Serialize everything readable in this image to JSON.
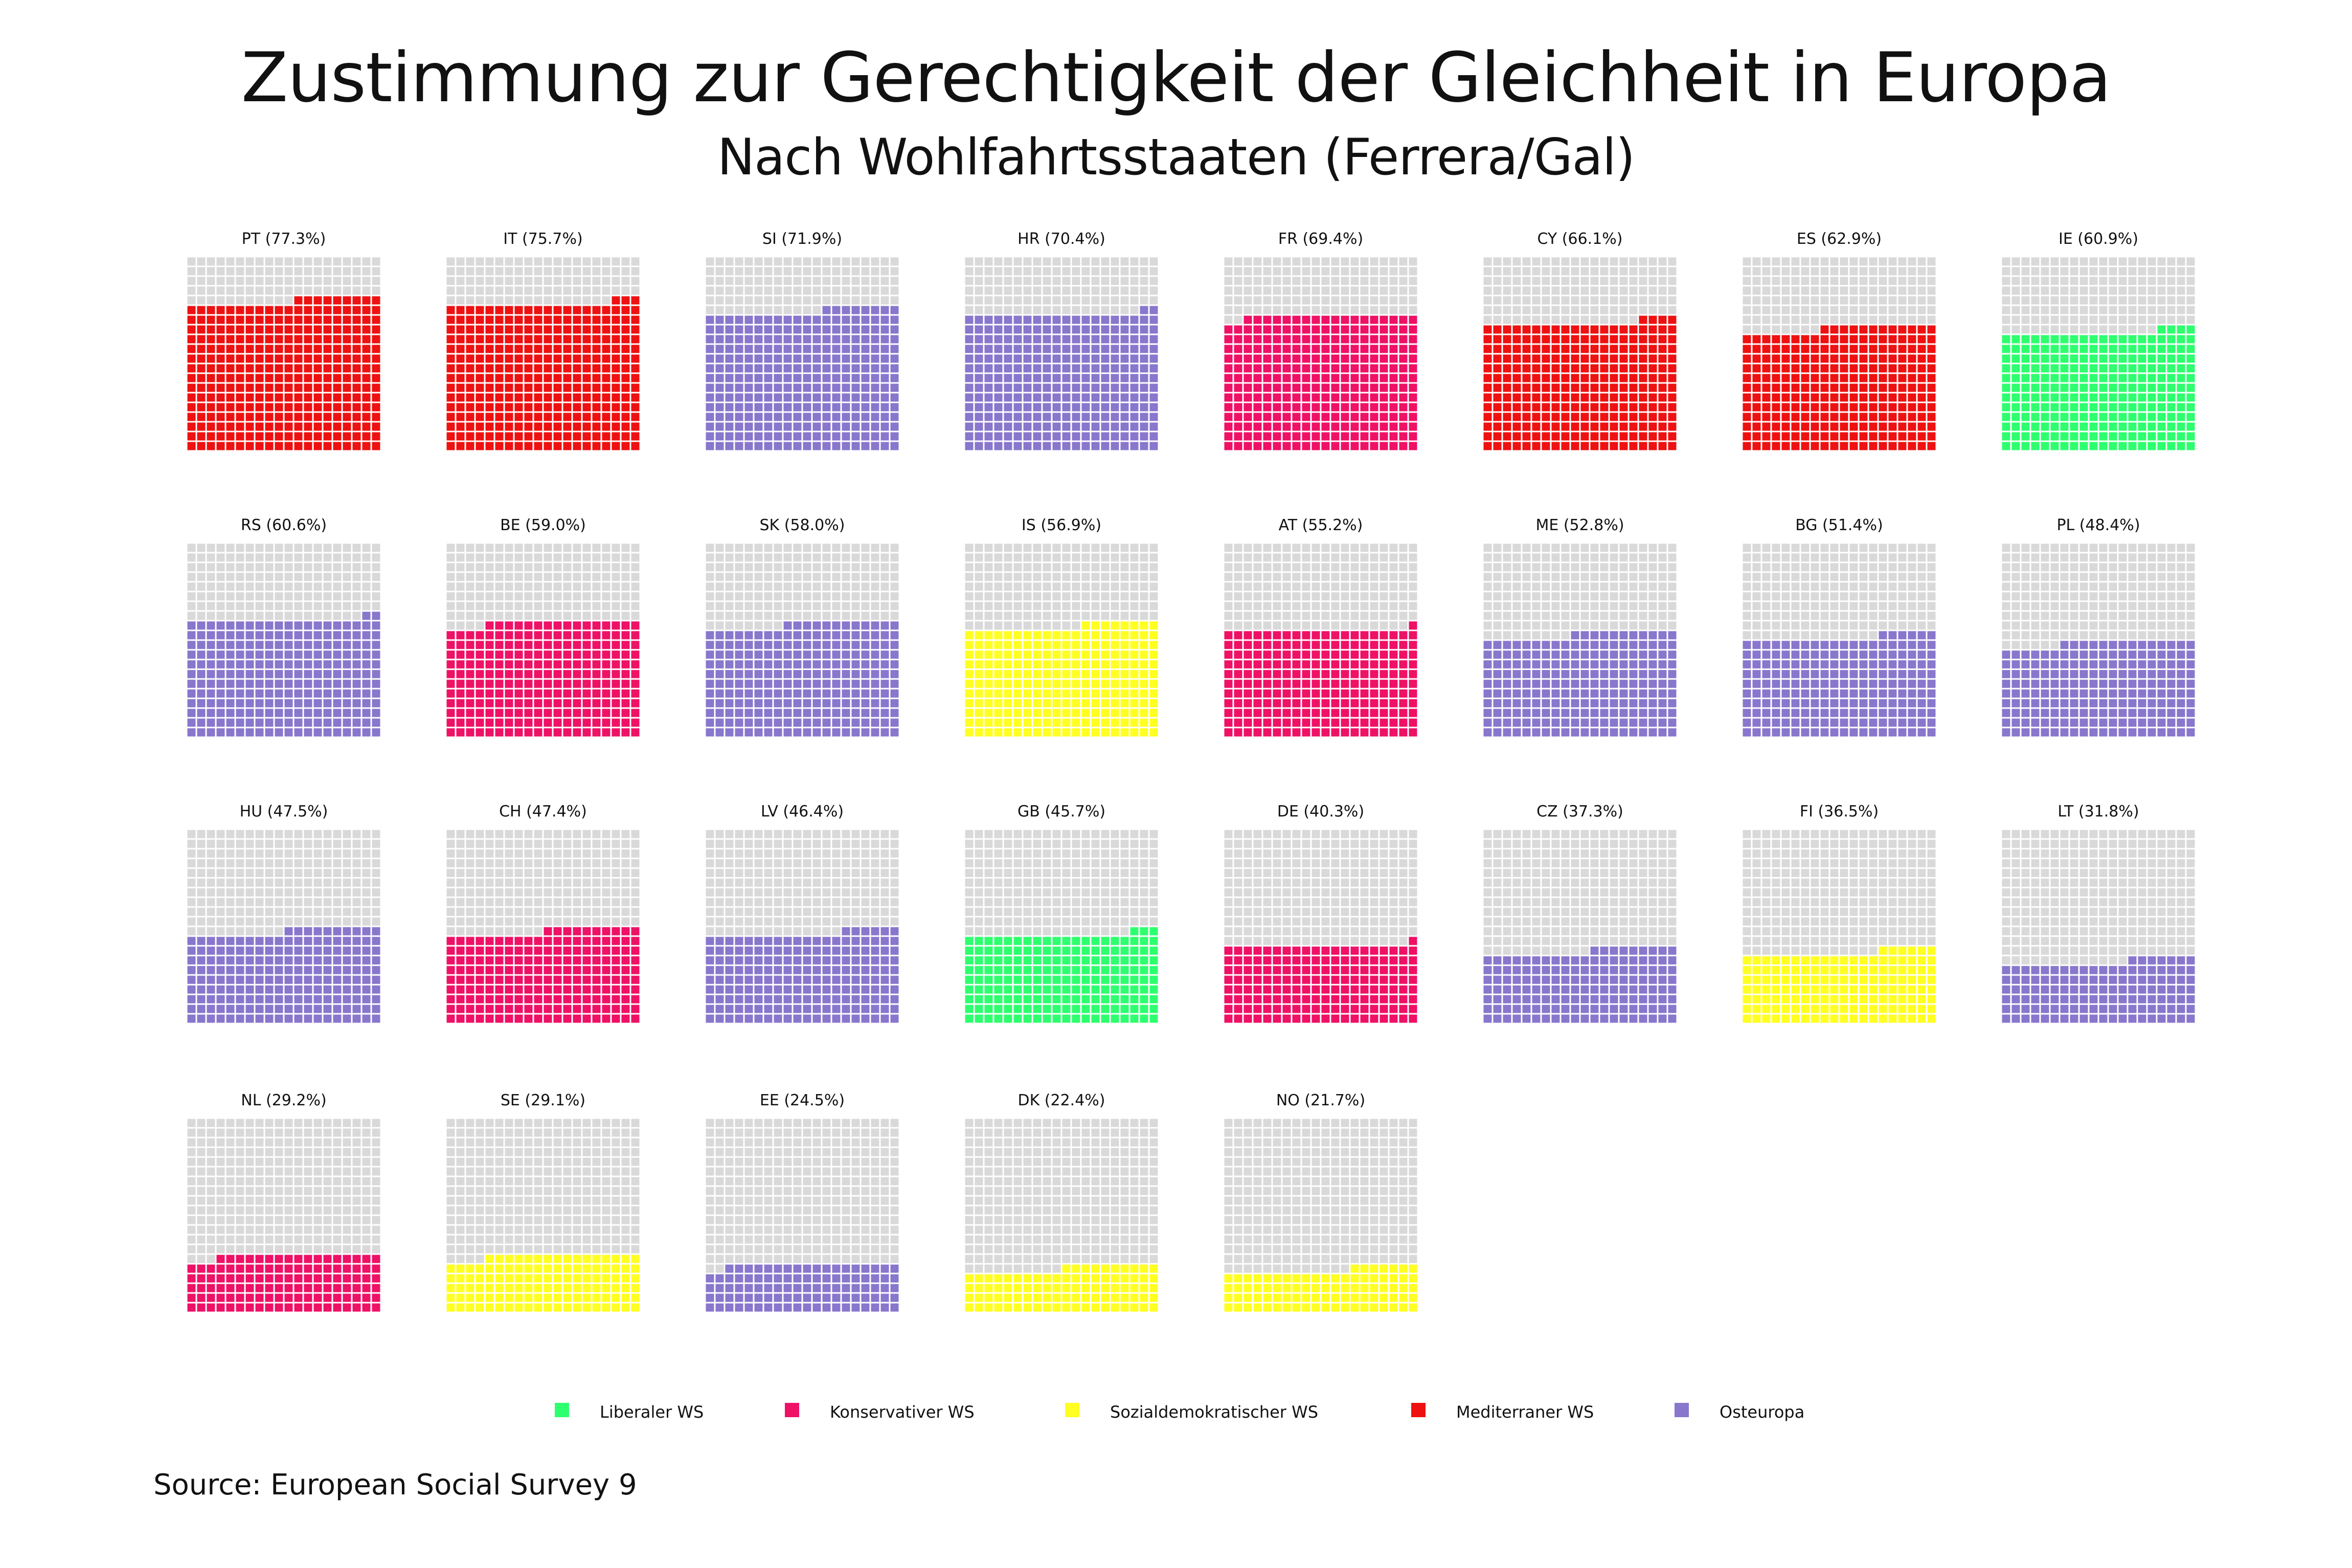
{
  "chart_data": {
    "type": "waffle",
    "title": "Zustimmung zur Gerechtigkeit der Gleichheit in Europa",
    "subtitle": "Nach Wohlfahrtsstaaten (Ferrera/Gal)",
    "source": "Source: European Social Survey 9",
    "cells_per_panel": 400,
    "grid": {
      "rows": 20,
      "cols": 20
    },
    "empty_color": "#d9d9d9",
    "legend": [
      {
        "name": "Liberaler WS",
        "color": "#2dff6e"
      },
      {
        "name": "Konservativer WS",
        "color": "#ee1166"
      },
      {
        "name": "Sozialdemokratischer WS",
        "color": "#ffff22"
      },
      {
        "name": "Mediterraner WS",
        "color": "#ee1111"
      },
      {
        "name": "Osteuropa",
        "color": "#8877cc"
      }
    ],
    "panels": [
      {
        "label": "PT (77.3%)",
        "value": 77.3,
        "group": "Mediterraner WS"
      },
      {
        "label": "IT (75.7%)",
        "value": 75.7,
        "group": "Mediterraner WS"
      },
      {
        "label": "SI (71.9%)",
        "value": 71.9,
        "group": "Osteuropa"
      },
      {
        "label": "HR (70.4%)",
        "value": 70.4,
        "group": "Osteuropa"
      },
      {
        "label": "FR (69.4%)",
        "value": 69.4,
        "group": "Konservativer WS"
      },
      {
        "label": "CY (66.1%)",
        "value": 66.1,
        "group": "Mediterraner WS"
      },
      {
        "label": "ES (62.9%)",
        "value": 62.9,
        "group": "Mediterraner WS"
      },
      {
        "label": "IE (60.9%)",
        "value": 60.9,
        "group": "Liberaler WS"
      },
      {
        "label": "RS (60.6%)",
        "value": 60.6,
        "group": "Osteuropa"
      },
      {
        "label": "BE (59.0%)",
        "value": 59.0,
        "group": "Konservativer WS"
      },
      {
        "label": "SK (58.0%)",
        "value": 58.0,
        "group": "Osteuropa"
      },
      {
        "label": "IS (56.9%)",
        "value": 56.9,
        "group": "Sozialdemokratischer WS"
      },
      {
        "label": "AT (55.2%)",
        "value": 55.2,
        "group": "Konservativer WS"
      },
      {
        "label": "ME (52.8%)",
        "value": 52.8,
        "group": "Osteuropa"
      },
      {
        "label": "BG (51.4%)",
        "value": 51.4,
        "group": "Osteuropa"
      },
      {
        "label": "PL (48.4%)",
        "value": 48.4,
        "group": "Osteuropa"
      },
      {
        "label": "HU (47.5%)",
        "value": 47.5,
        "group": "Osteuropa"
      },
      {
        "label": "CH (47.4%)",
        "value": 47.4,
        "group": "Konservativer WS"
      },
      {
        "label": "LV (46.4%)",
        "value": 46.4,
        "group": "Osteuropa"
      },
      {
        "label": "GB (45.7%)",
        "value": 45.7,
        "group": "Liberaler WS"
      },
      {
        "label": "DE (40.3%)",
        "value": 40.3,
        "group": "Konservativer WS"
      },
      {
        "label": "CZ (37.3%)",
        "value": 37.3,
        "group": "Osteuropa"
      },
      {
        "label": "FI (36.5%)",
        "value": 36.5,
        "group": "Sozialdemokratischer WS"
      },
      {
        "label": "LT (31.8%)",
        "value": 31.8,
        "group": "Osteuropa"
      },
      {
        "label": "NL (29.2%)",
        "value": 29.2,
        "group": "Konservativer WS"
      },
      {
        "label": "SE (29.1%)",
        "value": 29.1,
        "group": "Sozialdemokratischer WS"
      },
      {
        "label": "EE (24.5%)",
        "value": 24.5,
        "group": "Osteuropa"
      },
      {
        "label": "DK (22.4%)",
        "value": 22.4,
        "group": "Sozialdemokratischer WS"
      },
      {
        "label": "NO (21.7%)",
        "value": 21.7,
        "group": "Sozialdemokratischer WS"
      }
    ]
  }
}
